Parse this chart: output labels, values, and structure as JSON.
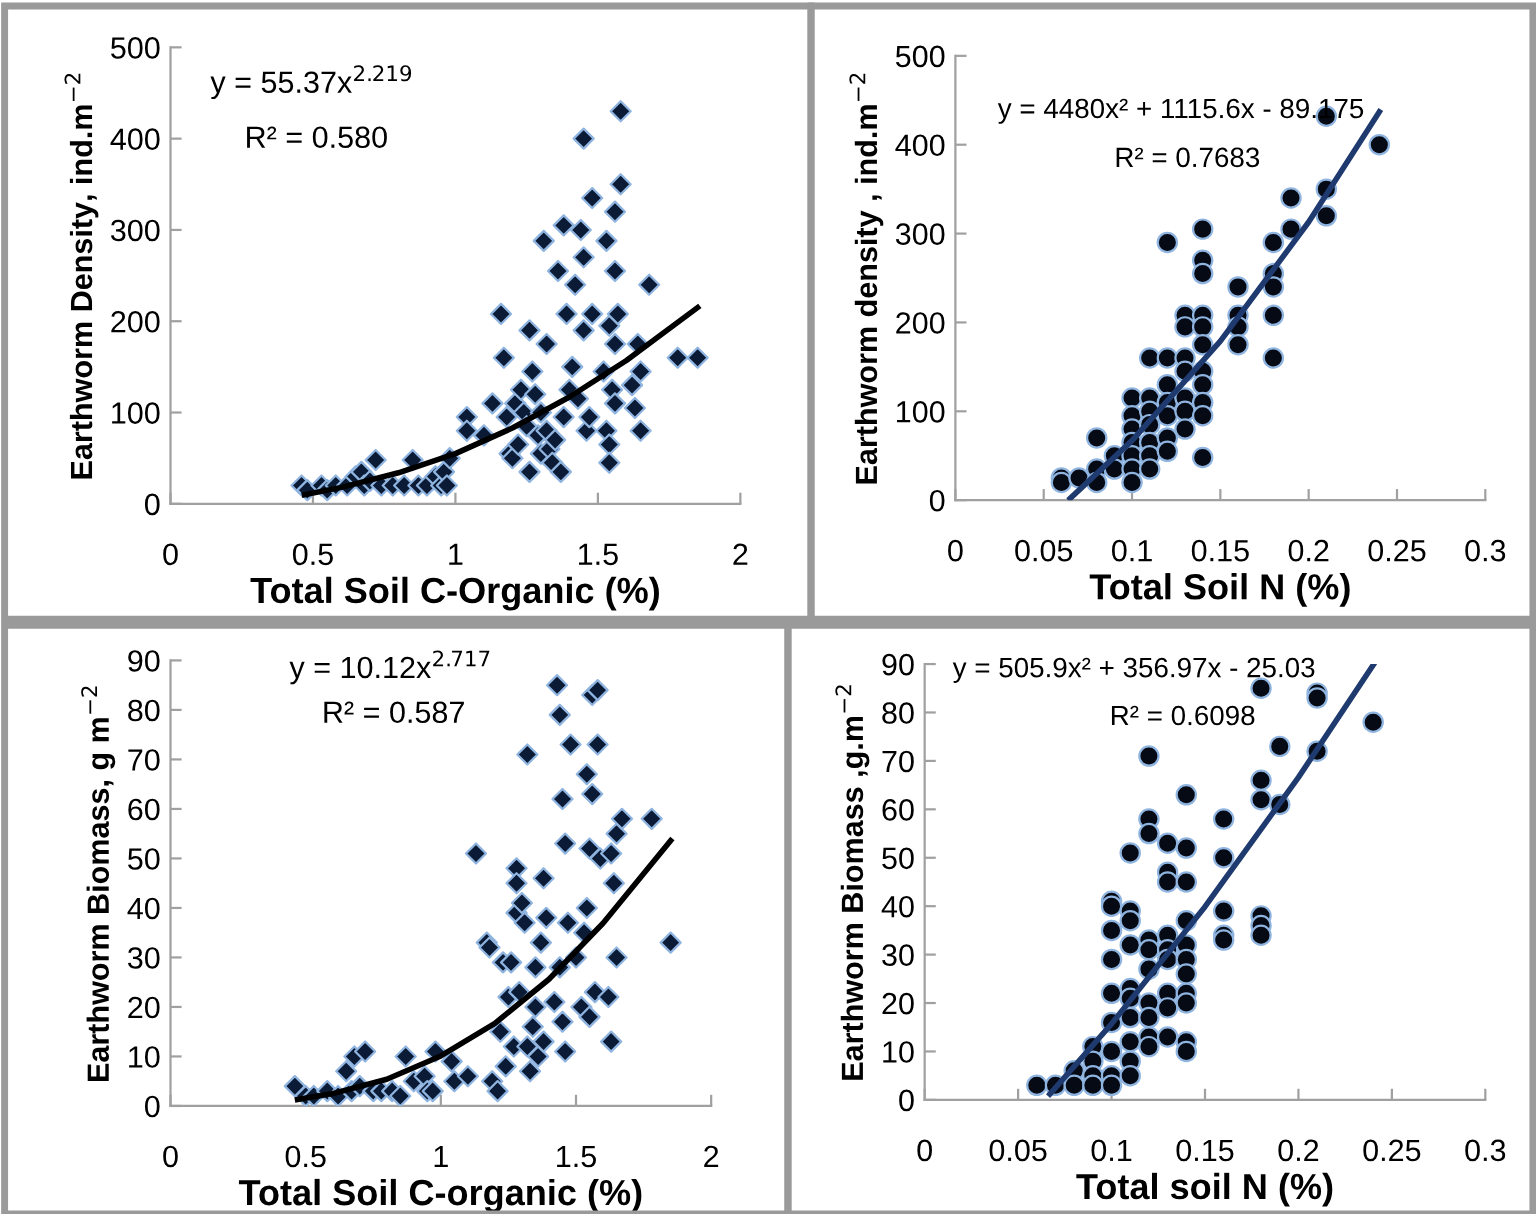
{
  "chart_data": [
    {
      "type": "scatter",
      "xlabel": "Total Soil C-Organic (%)",
      "ylabel": "Earthworm Density, ind.m$^{−2}$",
      "xlim": [
        0,
        2
      ],
      "xticks": [
        0,
        0.5,
        1,
        1.5,
        2
      ],
      "ylim": [
        0,
        500
      ],
      "yticks": [
        0,
        100,
        200,
        300,
        400,
        500
      ],
      "grid": false,
      "legend": false,
      "marker": "diamond",
      "annotations": [
        "y = 55.37x$^{2.219}$",
        "R² = 0.580"
      ],
      "series": [
        {
          "color": "#0b1b35",
          "x": [
            0.46,
            0.48,
            0.53,
            0.55,
            0.58,
            0.62,
            0.65,
            0.67,
            0.68,
            0.7,
            0.72,
            0.74,
            0.78,
            0.82,
            0.85,
            0.87,
            0.9,
            0.93,
            0.95,
            0.96,
            0.97,
            0.98,
            1.04,
            1.04,
            1.1,
            1.13,
            1.16,
            1.17,
            1.18,
            1.19,
            1.2,
            1.21,
            1.22,
            1.23,
            1.24,
            1.25,
            1.26,
            1.26,
            1.27,
            1.28,
            1.29,
            1.3,
            1.3,
            1.31,
            1.32,
            1.32,
            1.33,
            1.34,
            1.35,
            1.36,
            1.37,
            1.38,
            1.38,
            1.39,
            1.4,
            1.41,
            1.42,
            1.43,
            1.44,
            1.45,
            1.45,
            1.45,
            1.46,
            1.47,
            1.48,
            1.48,
            1.52,
            1.53,
            1.53,
            1.54,
            1.54,
            1.54,
            1.55,
            1.56,
            1.56,
            1.56,
            1.56,
            1.57,
            1.58,
            1.58,
            1.62,
            1.63,
            1.64,
            1.65,
            1.65,
            1.68,
            1.78,
            1.85
          ],
          "values": [
            20,
            15,
            20,
            15,
            20,
            20,
            30,
            35,
            20,
            25,
            48,
            20,
            20,
            20,
            48,
            20,
            20,
            30,
            20,
            35,
            20,
            50,
            95,
            80,
            75,
            110,
            208,
            160,
            95,
            55,
            50,
            110,
            65,
            125,
            100,
            85,
            35,
            190,
            145,
            120,
            75,
            100,
            55,
            288,
            80,
            175,
            60,
            45,
            70,
            255,
            35,
            305,
            95,
            208,
            125,
            150,
            240,
            115,
            300,
            400,
            270,
            190,
            80,
            95,
            335,
            208,
            145,
            288,
            80,
            65,
            45,
            195,
            125,
            320,
            255,
            175,
            110,
            208,
            430,
            350,
            130,
            105,
            175,
            145,
            80,
            240,
            160,
            160
          ]
        },
        {
          "type": "line",
          "color": "#000000",
          "marker": "none",
          "x": [
            0.47,
            0.6,
            0.8,
            1.0,
            1.2,
            1.4,
            1.6,
            1.85
          ],
          "values": [
            10,
            18,
            34,
            55,
            83,
            117,
            157,
            215
          ]
        }
      ]
    },
    {
      "type": "scatter",
      "xlabel": "Total Soil N (%)",
      "ylabel": "Earthworm density , ind.m$^{−2}$",
      "xlim": [
        0,
        0.3
      ],
      "xticks": [
        0,
        0.05,
        0.1,
        0.15,
        0.2,
        0.25,
        0.3
      ],
      "ylim": [
        0,
        500
      ],
      "yticks": [
        0,
        100,
        200,
        300,
        400,
        500
      ],
      "grid": false,
      "legend": false,
      "marker": "circle",
      "annotations": [
        "y = 4480x² + 1115.6x - 89.175",
        "R² = 0.7683"
      ],
      "series": [
        {
          "color": "#050a14",
          "x": [
            0.06,
            0.06,
            0.07,
            0.08,
            0.08,
            0.08,
            0.09,
            0.09,
            0.1,
            0.1,
            0.1,
            0.1,
            0.1,
            0.1,
            0.1,
            0.11,
            0.11,
            0.11,
            0.11,
            0.11,
            0.11,
            0.11,
            0.12,
            0.12,
            0.12,
            0.12,
            0.12,
            0.12,
            0.12,
            0.13,
            0.13,
            0.13,
            0.13,
            0.13,
            0.13,
            0.13,
            0.14,
            0.14,
            0.14,
            0.14,
            0.14,
            0.14,
            0.14,
            0.14,
            0.14,
            0.14,
            0.14,
            0.16,
            0.16,
            0.16,
            0.16,
            0.18,
            0.18,
            0.18,
            0.18,
            0.18,
            0.19,
            0.19,
            0.21,
            0.21,
            0.21,
            0.24
          ],
          "values": [
            25,
            20,
            25,
            70,
            35,
            20,
            50,
            35,
            115,
            95,
            80,
            65,
            50,
            35,
            20,
            160,
            115,
            100,
            85,
            65,
            50,
            35,
            290,
            160,
            130,
            110,
            95,
            70,
            55,
            208,
            195,
            160,
            145,
            115,
            100,
            80,
            305,
            270,
            255,
            208,
            195,
            175,
            145,
            130,
            110,
            95,
            48,
            240,
            208,
            195,
            175,
            290,
            255,
            240,
            208,
            160,
            340,
            305,
            432,
            350,
            320,
            400
          ]
        },
        {
          "type": "line",
          "color": "#1f3a6e",
          "marker": "none",
          "x": [
            0.065,
            0.1,
            0.15,
            0.2,
            0.24
          ],
          "values": [
            2,
            67,
            179,
            313,
            437
          ]
        }
      ]
    },
    {
      "type": "scatter",
      "xlabel": "Total Soil C-organic (%)",
      "ylabel": "Earthworm Biomass, g m$^{−2}$",
      "xlim": [
        0,
        2
      ],
      "xticks": [
        0,
        0.5,
        1,
        1.5,
        2
      ],
      "ylim": [
        0,
        90
      ],
      "yticks": [
        0,
        10,
        20,
        30,
        40,
        50,
        60,
        70,
        80,
        90
      ],
      "grid": false,
      "legend": false,
      "marker": "diamond",
      "annotations": [
        "y = 10.12x$^{2.717}$",
        "R² = 0.587"
      ],
      "series": [
        {
          "color": "#0b1b35",
          "x": [
            0.46,
            0.5,
            0.53,
            0.58,
            0.62,
            0.65,
            0.67,
            0.68,
            0.7,
            0.72,
            0.75,
            0.78,
            0.82,
            0.85,
            0.87,
            0.9,
            0.94,
            0.95,
            0.97,
            0.98,
            1.04,
            1.05,
            1.1,
            1.13,
            1.17,
            1.18,
            1.19,
            1.21,
            1.22,
            1.23,
            1.24,
            1.25,
            1.26,
            1.27,
            1.28,
            1.28,
            1.28,
            1.29,
            1.3,
            1.31,
            1.32,
            1.32,
            1.33,
            1.34,
            1.35,
            1.35,
            1.36,
            1.37,
            1.38,
            1.38,
            1.39,
            1.42,
            1.43,
            1.44,
            1.44,
            1.45,
            1.45,
            1.46,
            1.46,
            1.47,
            1.48,
            1.5,
            1.52,
            1.53,
            1.54,
            1.54,
            1.55,
            1.55,
            1.56,
            1.56,
            1.57,
            1.58,
            1.58,
            1.59,
            1.62,
            1.63,
            1.63,
            1.64,
            1.65,
            1.65,
            1.67,
            1.78,
            1.85
          ],
          "values": [
            4,
            2,
            2,
            3,
            2,
            7,
            3,
            10,
            4,
            11,
            3,
            3,
            3,
            2,
            10,
            5,
            6,
            3,
            3,
            11,
            9,
            5,
            6,
            51,
            33,
            32,
            5,
            3,
            15,
            29,
            8,
            22,
            29,
            12,
            48,
            45,
            39,
            23,
            41,
            37,
            71,
            12,
            7,
            16,
            28,
            20,
            10,
            33,
            46,
            13,
            38,
            21,
            85,
            28,
            79,
            62,
            17,
            53,
            11,
            37,
            73,
            30,
            20,
            35,
            67,
            40,
            52,
            18,
            63,
            83,
            23,
            84,
            73,
            50,
            22,
            51,
            13,
            45,
            55,
            30,
            58,
            58,
            33
          ]
        },
        {
          "type": "line",
          "color": "#000000",
          "marker": "none",
          "x": [
            0.47,
            0.6,
            0.8,
            1.0,
            1.2,
            1.4,
            1.6,
            1.85
          ],
          "values": [
            1.3,
            2.5,
            5.4,
            10.1,
            16.7,
            25.6,
            36.9,
            53.6
          ]
        }
      ]
    },
    {
      "type": "scatter",
      "xlabel": "Total soil N (%)",
      "ylabel": "Earthworm Biomass ,g.m$^{−2}$",
      "xlim": [
        0,
        0.3
      ],
      "xticks": [
        0,
        0.05,
        0.1,
        0.15,
        0.2,
        0.25,
        0.3
      ],
      "ylim": [
        0,
        90
      ],
      "yticks": [
        0,
        10,
        20,
        30,
        40,
        50,
        60,
        70,
        80,
        90
      ],
      "grid": false,
      "legend": false,
      "marker": "circle",
      "annotations": [
        "y = 505.9x² + 356.97x - 25.03",
        "R² = 0.6098"
      ],
      "series": [
        {
          "color": "#050a14",
          "x": [
            0.06,
            0.07,
            0.08,
            0.08,
            0.09,
            0.09,
            0.09,
            0.09,
            0.1,
            0.1,
            0.1,
            0.1,
            0.1,
            0.1,
            0.1,
            0.1,
            0.1,
            0.11,
            0.11,
            0.11,
            0.11,
            0.11,
            0.11,
            0.11,
            0.11,
            0.11,
            0.11,
            0.12,
            0.12,
            0.12,
            0.12,
            0.12,
            0.12,
            0.12,
            0.12,
            0.12,
            0.12,
            0.13,
            0.13,
            0.13,
            0.13,
            0.13,
            0.13,
            0.13,
            0.13,
            0.13,
            0.14,
            0.14,
            0.14,
            0.14,
            0.14,
            0.14,
            0.14,
            0.14,
            0.14,
            0.14,
            0.14,
            0.16,
            0.16,
            0.16,
            0.16,
            0.16,
            0.18,
            0.18,
            0.18,
            0.18,
            0.18,
            0.18,
            0.19,
            0.19,
            0.21,
            0.21,
            0.21,
            0.24
          ],
          "values": [
            3,
            3,
            6,
            3,
            11,
            8,
            5,
            3,
            41,
            40,
            35,
            29,
            22,
            16,
            10,
            5,
            3,
            51,
            39,
            37,
            32,
            23,
            21,
            17,
            12,
            8,
            5,
            71,
            58,
            55,
            33,
            31,
            27,
            20,
            17,
            13,
            11,
            53,
            47,
            45,
            34,
            31,
            29,
            22,
            19,
            13,
            63,
            52,
            45,
            37,
            32,
            29,
            26,
            22,
            20,
            12,
            10,
            58,
            50,
            39,
            34,
            33,
            85,
            66,
            62,
            38,
            36,
            34,
            73,
            61,
            84,
            83,
            72,
            78
          ]
        },
        {
          "type": "line",
          "color": "#1f3a6e",
          "marker": "none",
          "x": [
            0.067,
            0.1,
            0.15,
            0.2,
            0.24
          ],
          "values": [
            1.2,
            15.7,
            39.9,
            66.6,
            89.8
          ]
        }
      ]
    }
  ]
}
